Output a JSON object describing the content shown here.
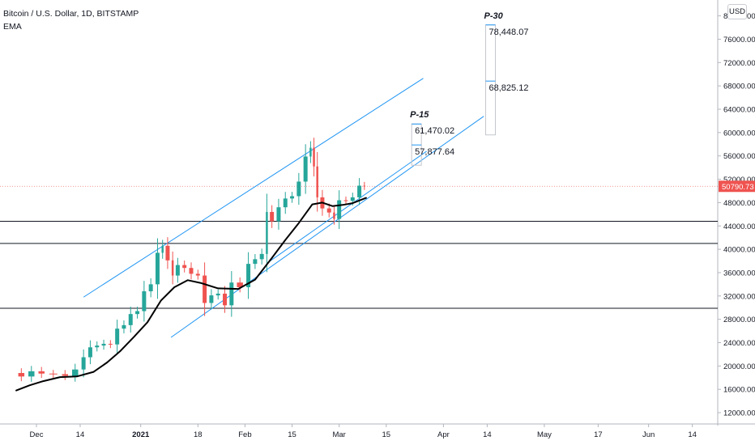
{
  "header": {
    "symbol": "Bitcoin / U.S. Dollar, 1D, BITSTAMP",
    "indicator": "EMA",
    "currency": "USD"
  },
  "colors": {
    "up": "#26a69a",
    "down": "#ef5350",
    "ema": "#000000",
    "channel": "#2196f3",
    "last_price": "#ef5350"
  },
  "chart_data": {
    "type": "candlestick",
    "title": "Bitcoin / U.S. Dollar, 1D, BITSTAMP",
    "xlabel": "",
    "ylabel": "",
    "ylim": [
      8000,
      84000
    ],
    "grid": false,
    "y_ticks": [
      "12000.00",
      "16000.00",
      "20000.00",
      "24000.00",
      "28000.00",
      "32000.00",
      "36000.00",
      "40000.00",
      "44000.00",
      "48000.00",
      "52000.00",
      "56000.00",
      "60000.00",
      "64000.00",
      "68000.00",
      "72000.00",
      "76000.00",
      "80000.00"
    ],
    "y_tick_values": [
      12000,
      16000,
      20000,
      24000,
      28000,
      32000,
      36000,
      40000,
      44000,
      48000,
      52000,
      56000,
      60000,
      64000,
      68000,
      72000,
      76000,
      80000
    ],
    "x_ticks": [
      {
        "label": "Dec",
        "date": "2020-12-01"
      },
      {
        "label": "14",
        "date": "2020-12-14"
      },
      {
        "label": "2021",
        "date": "2021-01-01",
        "bold": true
      },
      {
        "label": "18",
        "date": "2021-01-18"
      },
      {
        "label": "Feb",
        "date": "2021-02-01"
      },
      {
        "label": "15",
        "date": "2021-02-15"
      },
      {
        "label": "Mar",
        "date": "2021-03-01"
      },
      {
        "label": "15",
        "date": "2021-03-15"
      },
      {
        "label": "Apr",
        "date": "2021-04-01"
      },
      {
        "label": "14",
        "date": "2021-04-14"
      },
      {
        "label": "May",
        "date": "2021-05-01"
      },
      {
        "label": "17",
        "date": "2021-05-17"
      },
      {
        "label": "Jun",
        "date": "2021-06-01"
      },
      {
        "label": "14",
        "date": "2021-06-14"
      }
    ],
    "last_price": "50790.73",
    "last_price_value": 50790.73,
    "horizontal_levels": [
      44800,
      41000,
      29900
    ],
    "close_series": [
      {
        "date": "2020-11-25",
        "close": 18800
      },
      {
        "date": "2020-11-28",
        "close": 18200
      },
      {
        "date": "2020-12-01",
        "close": 19100
      },
      {
        "date": "2020-12-04",
        "close": 18700
      },
      {
        "date": "2020-12-08",
        "close": 18600
      },
      {
        "date": "2020-12-11",
        "close": 18300
      },
      {
        "date": "2020-12-14",
        "close": 19400
      },
      {
        "date": "2020-12-16",
        "close": 21500
      },
      {
        "date": "2020-12-18",
        "close": 23200
      },
      {
        "date": "2020-12-20",
        "close": 23500
      },
      {
        "date": "2020-12-22",
        "close": 23800
      },
      {
        "date": "2020-12-24",
        "close": 23700
      },
      {
        "date": "2020-12-26",
        "close": 26400
      },
      {
        "date": "2020-12-28",
        "close": 27000
      },
      {
        "date": "2020-12-30",
        "close": 28900
      },
      {
        "date": "2021-01-01",
        "close": 29400
      },
      {
        "date": "2021-01-03",
        "close": 32800
      },
      {
        "date": "2021-01-05",
        "close": 34000
      },
      {
        "date": "2021-01-07",
        "close": 39400
      },
      {
        "date": "2021-01-08",
        "close": 40600
      },
      {
        "date": "2021-01-10",
        "close": 38100
      },
      {
        "date": "2021-01-11",
        "close": 35500
      },
      {
        "date": "2021-01-13",
        "close": 37300
      },
      {
        "date": "2021-01-15",
        "close": 36800
      },
      {
        "date": "2021-01-17",
        "close": 35800
      },
      {
        "date": "2021-01-19",
        "close": 35500
      },
      {
        "date": "2021-01-21",
        "close": 30800
      },
      {
        "date": "2021-01-23",
        "close": 32100
      },
      {
        "date": "2021-01-25",
        "close": 32400
      },
      {
        "date": "2021-01-27",
        "close": 30400
      },
      {
        "date": "2021-01-29",
        "close": 34300
      },
      {
        "date": "2021-02-01",
        "close": 33500
      },
      {
        "date": "2021-02-03",
        "close": 37500
      },
      {
        "date": "2021-02-05",
        "close": 38300
      },
      {
        "date": "2021-02-07",
        "close": 39200
      },
      {
        "date": "2021-02-08",
        "close": 46400
      },
      {
        "date": "2021-02-10",
        "close": 44800
      },
      {
        "date": "2021-02-12",
        "close": 47200
      },
      {
        "date": "2021-02-14",
        "close": 48700
      },
      {
        "date": "2021-02-16",
        "close": 49100
      },
      {
        "date": "2021-02-18",
        "close": 51600
      },
      {
        "date": "2021-02-20",
        "close": 55900
      },
      {
        "date": "2021-02-21",
        "close": 57400
      },
      {
        "date": "2021-02-22",
        "close": 54200
      },
      {
        "date": "2021-02-23",
        "close": 48900
      },
      {
        "date": "2021-02-25",
        "close": 47000
      },
      {
        "date": "2021-02-27",
        "close": 46300
      },
      {
        "date": "2021-02-28",
        "close": 45200
      },
      {
        "date": "2021-03-02",
        "close": 48400
      },
      {
        "date": "2021-03-04",
        "close": 48300
      },
      {
        "date": "2021-03-06",
        "close": 48900
      },
      {
        "date": "2021-03-08",
        "close": 50900
      },
      {
        "date": "2021-03-09",
        "close": 50790.73
      }
    ],
    "series": [
      {
        "name": "EMA",
        "values": [
          {
            "date": "2020-11-25",
            "value": 15800
          },
          {
            "date": "2020-11-29",
            "value": 16700
          },
          {
            "date": "2020-12-03",
            "value": 17400
          },
          {
            "date": "2020-12-08",
            "value": 18100
          },
          {
            "date": "2020-12-13",
            "value": 18200
          },
          {
            "date": "2020-12-18",
            "value": 19000
          },
          {
            "date": "2020-12-22",
            "value": 20600
          },
          {
            "date": "2020-12-26",
            "value": 22600
          },
          {
            "date": "2020-12-30",
            "value": 25000
          },
          {
            "date": "2021-01-03",
            "value": 27500
          },
          {
            "date": "2021-01-07",
            "value": 31200
          },
          {
            "date": "2021-01-11",
            "value": 33500
          },
          {
            "date": "2021-01-15",
            "value": 34700
          },
          {
            "date": "2021-01-19",
            "value": 34200
          },
          {
            "date": "2021-01-24",
            "value": 33300
          },
          {
            "date": "2021-01-30",
            "value": 33200
          },
          {
            "date": "2021-02-04",
            "value": 34800
          },
          {
            "date": "2021-02-09",
            "value": 38500
          },
          {
            "date": "2021-02-13",
            "value": 41600
          },
          {
            "date": "2021-02-17",
            "value": 44500
          },
          {
            "date": "2021-02-21",
            "value": 47700
          },
          {
            "date": "2021-02-24",
            "value": 48000
          },
          {
            "date": "2021-02-27",
            "value": 47400
          },
          {
            "date": "2021-03-02",
            "value": 47600
          },
          {
            "date": "2021-03-05",
            "value": 47900
          },
          {
            "date": "2021-03-09",
            "value": 48800
          }
        ]
      }
    ],
    "channel_lines": [
      {
        "start": {
          "date": "2020-12-15",
          "value": 31800
        },
        "end": {
          "date": "2021-03-26",
          "value": 69300
        }
      },
      {
        "start": {
          "date": "2021-01-10",
          "value": 24900
        },
        "end": {
          "date": "2021-04-13",
          "value": 62800
        }
      },
      {
        "start": {
          "date": "2021-02-08",
          "value": 37800
        },
        "end": {
          "date": "2021-03-27",
          "value": 56800
        }
      }
    ],
    "projections": [
      {
        "label": "P-15",
        "date": "2021-03-24",
        "levels": [
          "61,470.02",
          "57,877.64"
        ],
        "level_values": [
          61470.02,
          57877.64
        ],
        "box_range": [
          54400,
          61470.02
        ]
      },
      {
        "label": "P-30",
        "date": "2021-04-15",
        "levels": [
          "78,448.07",
          "68,825.12"
        ],
        "level_values": [
          78448.07,
          68825.12
        ],
        "box_range": [
          59600,
          78448.07
        ]
      }
    ]
  }
}
